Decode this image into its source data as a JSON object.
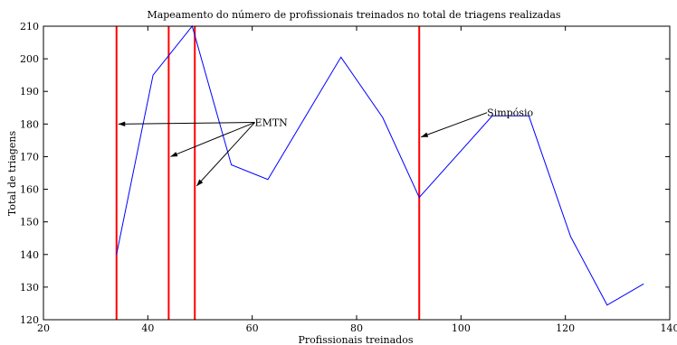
{
  "chart_data": {
    "type": "line",
    "title": "Mapeamento do número de profissionais treinados no total de triagens realizadas",
    "xlabel": "Profissionais treinados",
    "ylabel": "Total de triagens",
    "xlim": [
      20,
      140
    ],
    "ylim": [
      120,
      210
    ],
    "xticks": [
      20,
      40,
      60,
      80,
      100,
      120,
      140
    ],
    "yticks": [
      120,
      130,
      140,
      150,
      160,
      170,
      180,
      190,
      200,
      210
    ],
    "grid": false,
    "series": [
      {
        "color": "#0000ff",
        "x": [
          34,
          41,
          48.5,
          56,
          63,
          77,
          85,
          92,
          106,
          113,
          121,
          128,
          135
        ],
        "y": [
          140,
          195,
          210,
          167.5,
          163,
          200.5,
          182,
          157.5,
          182.5,
          182.5,
          145.5,
          124.5,
          131
        ]
      }
    ],
    "vlines": [
      {
        "x": 34,
        "color": "#ff0000"
      },
      {
        "x": 44,
        "color": "#ff0000"
      },
      {
        "x": 49,
        "color": "#ff0000"
      },
      {
        "x": 92,
        "color": "#ff0000"
      }
    ],
    "annotations": [
      {
        "text": "EMTN",
        "text_at": [
          60.5,
          180.5
        ],
        "arrow_targets": [
          [
            34,
            180
          ],
          [
            44,
            170
          ],
          [
            49,
            161
          ]
        ]
      },
      {
        "text": "Simpósio",
        "text_at": [
          105,
          183.5
        ],
        "arrow_targets": [
          [
            92,
            176
          ]
        ]
      }
    ]
  }
}
